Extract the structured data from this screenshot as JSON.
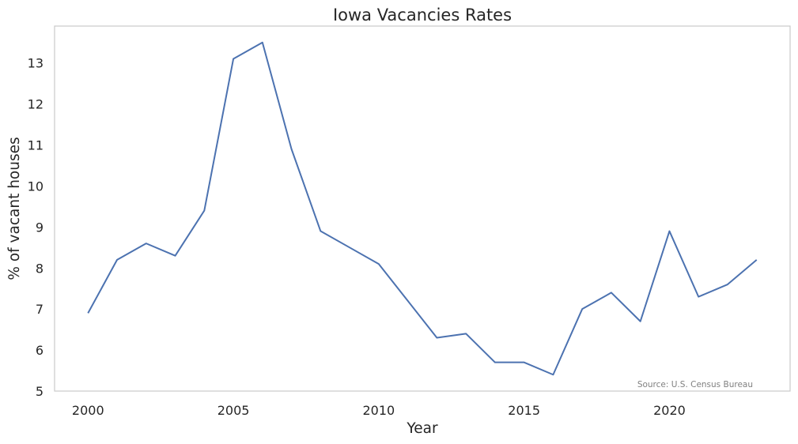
{
  "chart_data": {
    "type": "line",
    "title": "Iowa Vacancies Rates",
    "xlabel": "Year",
    "ylabel": "% of vacant houses",
    "x": [
      2000,
      2001,
      2002,
      2003,
      2004,
      2005,
      2006,
      2007,
      2008,
      2009,
      2010,
      2011,
      2012,
      2013,
      2014,
      2015,
      2016,
      2017,
      2018,
      2019,
      2020,
      2021,
      2022,
      2023
    ],
    "series": [
      {
        "values": [
          6.9,
          8.2,
          8.6,
          8.3,
          9.4,
          13.1,
          13.5,
          10.9,
          8.9,
          8.5,
          8.1,
          7.2,
          6.3,
          6.4,
          5.7,
          5.7,
          5.4,
          7.0,
          7.4,
          6.7,
          8.9,
          7.3,
          7.6,
          8.2
        ],
        "color": "#4c72b0"
      }
    ],
    "xticks": [
      2000,
      2005,
      2010,
      2015,
      2020
    ],
    "yticks": [
      5,
      6,
      7,
      8,
      9,
      10,
      11,
      12,
      13
    ],
    "xlim": [
      1998.85,
      2024.15
    ],
    "ylim": [
      5.0,
      13.9
    ],
    "grid": false,
    "annotation": "Source: U.S. Census Bureau",
    "frame_color": "#cccccc"
  }
}
